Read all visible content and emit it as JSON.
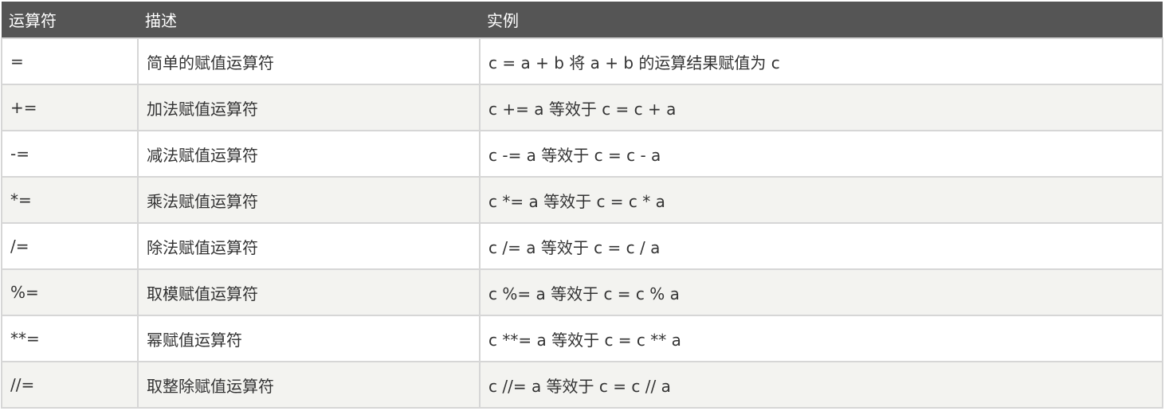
{
  "headers": [
    "运算符",
    "描述",
    "实例"
  ],
  "rows": [
    [
      "=",
      "简单的赋值运算符",
      "c = a + b 将 a + b 的运算结果赋值为 c"
    ],
    [
      "+=",
      "加法赋值运算符",
      "c += a 等效于 c = c + a"
    ],
    [
      "-=",
      "减法赋值运算符",
      "c -= a 等效于 c = c - a"
    ],
    [
      "*=",
      "乘法赋值运算符",
      "c *= a 等效于 c = c * a"
    ],
    [
      "/=",
      "除法赋值运算符",
      "c /= a 等效于 c = c / a"
    ],
    [
      "%=",
      "取模赋值运算符",
      "c %= a 等效于 c = c % a"
    ],
    [
      "**=",
      "幂赋值运算符",
      "c **= a 等效于 c = c ** a"
    ],
    [
      "//=",
      "取整除赋值运算符",
      "c //= a 等效于 c = c // a"
    ]
  ]
}
